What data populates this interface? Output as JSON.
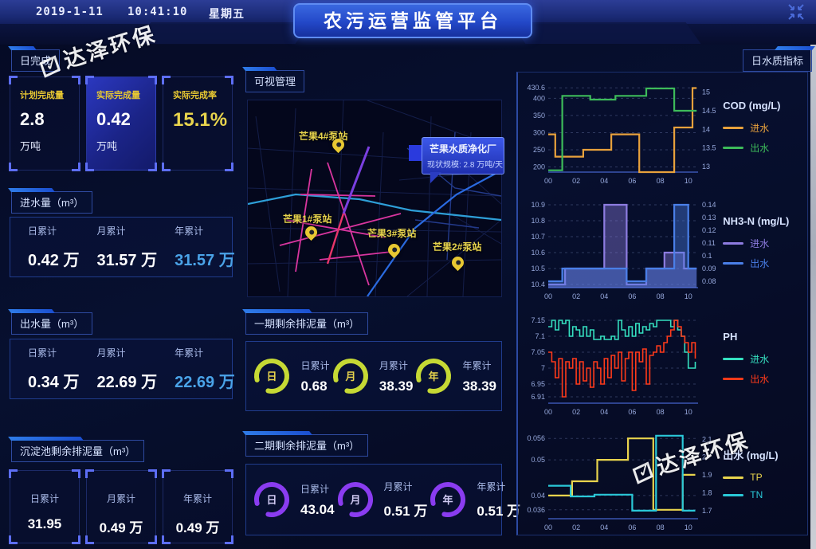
{
  "header": {
    "date": "2019-1-11",
    "time": "10:41:10",
    "weekday": "星期五",
    "title": "农污运营监管平台"
  },
  "watermark": {
    "check": "✓",
    "text": "达泽环保"
  },
  "left": {
    "daily": {
      "title": "日完成",
      "cards": [
        {
          "label": "计划完成量",
          "value": "2.8",
          "unit": "万吨"
        },
        {
          "label": "实际完成量",
          "value": "0.42",
          "unit": "万吨"
        },
        {
          "label": "实际完成率",
          "value": "15.1%",
          "unit": ""
        }
      ]
    },
    "inflow": {
      "title": "进水量（m³）",
      "stats": [
        {
          "label": "日累计",
          "value": "0.42 万"
        },
        {
          "label": "月累计",
          "value": "31.57 万"
        },
        {
          "label": "年累计",
          "value": "31.57 万"
        }
      ]
    },
    "outflow": {
      "title": "出水量（m³）",
      "stats": [
        {
          "label": "日累计",
          "value": "0.34 万"
        },
        {
          "label": "月累计",
          "value": "22.69 万"
        },
        {
          "label": "年累计",
          "value": "22.69 万"
        }
      ]
    },
    "sediment": {
      "title": "沉淀池剩余排泥量（m³）",
      "stats": [
        {
          "label": "日累计",
          "value": "31.95"
        },
        {
          "label": "月累计",
          "value": "0.49 万"
        },
        {
          "label": "年累计",
          "value": "0.49 万"
        }
      ]
    }
  },
  "center": {
    "map": {
      "title": "可视管理",
      "stations": [
        {
          "name": "芒果4#泵站"
        },
        {
          "name": "芒果1#泵站"
        },
        {
          "name": "芒果3#泵站"
        },
        {
          "name": "芒果2#泵站"
        }
      ],
      "tooltip": {
        "name": "芒果水质净化厂",
        "detail": "现状规模: 2.8 万吨/天"
      }
    },
    "phase1": {
      "title": "一期剩余排泥量（m³）",
      "ring_color": "#c6d934",
      "gauges": [
        {
          "ring": "日",
          "label": "日累计",
          "value": "0.68"
        },
        {
          "ring": "月",
          "label": "月累计",
          "value": "38.39"
        },
        {
          "ring": "年",
          "label": "年累计",
          "value": "38.39"
        }
      ]
    },
    "phase2": {
      "title": "二期剩余排泥量（m³）",
      "ring_color": "#8a3cf0",
      "gauges": [
        {
          "ring": "日",
          "label": "日累计",
          "value": "43.04"
        },
        {
          "ring": "月",
          "label": "月累计",
          "value": "0.51 万"
        },
        {
          "ring": "年",
          "label": "年累计",
          "value": "0.51 万"
        }
      ]
    }
  },
  "right": {
    "button": "日水质指标"
  },
  "chart_data": [
    {
      "type": "line",
      "title": "COD (mg/L)",
      "legend": [
        {
          "name": "进水",
          "color": "#e8a13c"
        },
        {
          "name": "出水",
          "color": "#3dbb5a"
        }
      ],
      "x_ticks": [
        "00",
        "02",
        "04",
        "06",
        "08",
        "10"
      ],
      "xlim": [
        0,
        10.7
      ],
      "left_ticks": [
        430.6,
        400,
        350,
        300,
        250,
        200
      ],
      "ylim_left": [
        185,
        445
      ],
      "right_ticks": [
        15,
        14.5,
        14,
        13.5,
        13
      ],
      "ylim_right": [
        12.85,
        15.25
      ],
      "grid": true,
      "legend_position": "right",
      "series": [
        {
          "name": "进水",
          "axis": "left",
          "color": "#e8a13c",
          "step": true,
          "x": [
            0,
            0.5,
            2.5,
            4.5,
            6.5,
            9.0,
            10.3,
            10.6
          ],
          "y": [
            295,
            230,
            250,
            295,
            185,
            315,
            430,
            430
          ]
        },
        {
          "name": "出水",
          "axis": "right",
          "color": "#3dbb5a",
          "step": true,
          "x": [
            0,
            1.0,
            3.0,
            4.8,
            7.0,
            9.0,
            10.6
          ],
          "y": [
            12.9,
            14.9,
            14.8,
            14.9,
            15.1,
            14.5,
            14.5
          ]
        }
      ]
    },
    {
      "type": "line",
      "title": "NH3-N (mg/L)",
      "legend": [
        {
          "name": "进水",
          "color": "#8d7ce0"
        },
        {
          "name": "出水",
          "color": "#4a7fe8"
        }
      ],
      "x_ticks": [
        "00",
        "02",
        "04",
        "06",
        "08",
        "10"
      ],
      "xlim": [
        0,
        10.7
      ],
      "left_ticks": [
        10.9,
        10.8,
        10.7,
        10.6,
        10.5,
        10.4
      ],
      "ylim_left": [
        10.38,
        10.94
      ],
      "right_ticks": [
        0.14,
        0.13,
        0.12,
        0.11,
        0.1,
        0.09,
        0.08
      ],
      "ylim_right": [
        0.075,
        0.145
      ],
      "grid": true,
      "legend_position": "right",
      "series": [
        {
          "name": "进水",
          "axis": "left",
          "color": "#8d7ce0",
          "step": true,
          "fill": true,
          "x": [
            0,
            1.2,
            4.0,
            5.6,
            7.0,
            8.3,
            9.7,
            10.6
          ],
          "y": [
            10.4,
            10.5,
            10.9,
            10.4,
            10.5,
            10.6,
            10.5,
            10.5
          ]
        },
        {
          "name": "出水",
          "axis": "right",
          "color": "#4a7fe8",
          "step": true,
          "fill": true,
          "x": [
            0,
            1.0,
            5.6,
            7.0,
            9.0,
            10.0,
            10.6
          ],
          "y": [
            0.08,
            0.09,
            0.08,
            0.09,
            0.14,
            0.09,
            0.09
          ]
        }
      ]
    },
    {
      "type": "line",
      "title": "PH",
      "legend": [
        {
          "name": "进水",
          "color": "#35e0c0"
        },
        {
          "name": "出水",
          "color": "#ff3a1a"
        }
      ],
      "x_ticks": [
        "00",
        "02",
        "04",
        "06",
        "08",
        "10"
      ],
      "xlim": [
        0,
        10.7
      ],
      "left_ticks": [
        7.15,
        7.1,
        7.05,
        7,
        6.95,
        6.91
      ],
      "ylim_left": [
        6.89,
        7.17
      ],
      "right_ticks": null,
      "ylim_right": null,
      "grid": true,
      "legend_position": "right",
      "series": [
        {
          "name": "进水",
          "axis": "left",
          "color": "#35e0c0",
          "step": true,
          "x": [
            0,
            0.25,
            0.5,
            0.75,
            1,
            1.25,
            1.5,
            1.75,
            2,
            2.25,
            2.5,
            2.75,
            3,
            3.25,
            3.5,
            3.75,
            4,
            4.25,
            4.5,
            4.75,
            5,
            5.25,
            5.5,
            5.75,
            6,
            6.25,
            6.5,
            6.75,
            7,
            7.25,
            7.5,
            7.75,
            8,
            8.25,
            8.5,
            8.75,
            9,
            9.25,
            9.5,
            9.75,
            10,
            10.25,
            10.5
          ],
          "y": [
            7.13,
            7.15,
            7.12,
            7.15,
            7.14,
            7.15,
            7.1,
            7.13,
            7.12,
            7.1,
            7.13,
            7.1,
            7.12,
            7.09,
            7.09,
            7.1,
            7.09,
            7.09,
            7.1,
            7.09,
            7.15,
            7.12,
            7.1,
            7.13,
            7.1,
            7.14,
            7.11,
            7.13,
            7.12,
            7.14,
            7.13,
            7.15,
            7.15,
            7.15,
            7.15,
            7.13,
            7.15,
            7.12,
            7.1,
            7.05,
            7.0,
            7.0,
            7.02
          ]
        },
        {
          "name": "出水",
          "axis": "left",
          "color": "#ff3a1a",
          "step": true,
          "x": [
            0,
            0.25,
            0.5,
            0.75,
            1,
            1.25,
            1.5,
            1.75,
            2,
            2.25,
            2.5,
            2.75,
            3,
            3.25,
            3.5,
            3.75,
            4,
            4.25,
            4.5,
            4.75,
            5,
            5.25,
            5.5,
            5.75,
            6,
            6.25,
            6.5,
            6.75,
            7,
            7.25,
            7.5,
            7.75,
            8,
            8.25,
            8.5,
            8.75,
            9,
            9.25,
            9.5,
            9.75,
            10,
            10.25,
            10.5
          ],
          "y": [
            7.05,
            7.02,
            6.97,
            7.03,
            6.91,
            7.02,
            7.0,
            7.03,
            6.95,
            7.02,
            6.96,
            7.0,
            6.94,
            7.02,
            7.0,
            6.95,
            7.03,
            6.97,
            7.04,
            7.0,
            7.05,
            6.96,
            7.03,
            7.05,
            6.93,
            7.05,
            7.02,
            7.06,
            6.95,
            7.04,
            7.05,
            7.07,
            7.05,
            7.08,
            7.1,
            7.12,
            7.15,
            7.13,
            7.1,
            7.08,
            7.05,
            7.08,
            7.03
          ]
        }
      ]
    },
    {
      "type": "line",
      "title": "出水 (mg/L)",
      "legend": [
        {
          "name": "TP",
          "color": "#e8d44d"
        },
        {
          "name": "TN",
          "color": "#2ac8d8"
        }
      ],
      "x_ticks": [
        "00",
        "02",
        "04",
        "06",
        "08",
        "10"
      ],
      "xlim": [
        0,
        10.7
      ],
      "left_ticks": [
        0.056,
        0.05,
        0.04,
        0.036
      ],
      "ylim_left": [
        0.0335,
        0.0585
      ],
      "right_ticks": [
        2.1,
        2,
        1.9,
        1.8,
        1.7
      ],
      "ylim_right": [
        1.655,
        2.155
      ],
      "grid": true,
      "legend_position": "right",
      "series": [
        {
          "name": "TP",
          "axis": "left",
          "color": "#e8d44d",
          "step": true,
          "x": [
            0,
            1.7,
            3.5,
            5.7,
            7.5,
            9.6,
            10.5
          ],
          "y": [
            0.04,
            0.044,
            0.05,
            0.056,
            0.036,
            0.0458,
            0.0458
          ]
        },
        {
          "name": "TN",
          "axis": "right",
          "color": "#2ac8d8",
          "step": true,
          "x": [
            0,
            1.6,
            3.3,
            6.0,
            7.7,
            9.6,
            10.5
          ],
          "y": [
            1.84,
            1.78,
            1.79,
            1.7,
            2.12,
            1.7,
            1.7
          ]
        }
      ]
    }
  ]
}
